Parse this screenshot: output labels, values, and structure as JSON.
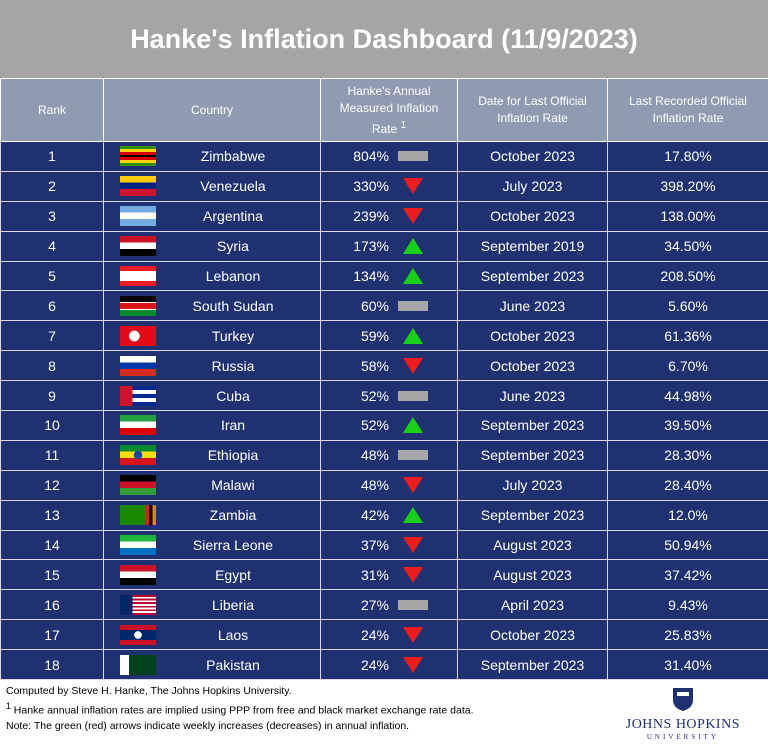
{
  "title": "Hanke's Inflation Dashboard (11/9/2023)",
  "table": {
    "header": [
      "Rank",
      "Country",
      "Hanke's Annual Measured Inflation Rate",
      "Date for Last Official Inflation Rate",
      "Last Recorded Official Inflation Rate"
    ],
    "header_mark": "1",
    "rows": [
      [
        "1",
        "Zimbabwe",
        "804%",
        "October 2023",
        "17.80%"
      ],
      [
        "2",
        "Venezuela",
        "330%",
        "July 2023",
        "398.20%"
      ],
      [
        "3",
        "Argentina",
        "239%",
        "October 2023",
        "138.00%"
      ],
      [
        "4",
        "Syria",
        "173%",
        "September 2019",
        "34.50%"
      ],
      [
        "5",
        "Lebanon",
        "134%",
        "September 2023",
        "208.50%"
      ],
      [
        "6",
        "South Sudan",
        "60%",
        "June 2023",
        "5.60%"
      ],
      [
        "7",
        "Turkey",
        "59%",
        "October 2023",
        "61.36%"
      ],
      [
        "8",
        "Russia",
        "58%",
        "October 2023",
        "6.70%"
      ],
      [
        "9",
        "Cuba",
        "52%",
        "June 2023",
        "44.98%"
      ],
      [
        "10",
        "Iran",
        "52%",
        "September 2023",
        "39.50%"
      ],
      [
        "11",
        "Ethiopia",
        "48%",
        "September 2023",
        "28.30%"
      ],
      [
        "12",
        "Malawi",
        "48%",
        "July 2023",
        "28.40%"
      ],
      [
        "13",
        "Zambia",
        "42%",
        "September 2023",
        "12.0%"
      ],
      [
        "14",
        "Sierra Leone",
        "37%",
        "August 2023",
        "50.94%"
      ],
      [
        "15",
        "Egypt",
        "31%",
        "August 2023",
        "37.42%"
      ],
      [
        "16",
        "Liberia",
        "27%",
        "April 2023",
        "9.43%"
      ],
      [
        "17",
        "Laos",
        "24%",
        "October 2023",
        "25.83%"
      ],
      [
        "18",
        "Pakistan",
        "24%",
        "September 2023",
        "31.40%"
      ]
    ],
    "trend": [
      "flat",
      "down",
      "down",
      "up",
      "up",
      "flat",
      "up",
      "down",
      "flat",
      "up",
      "flat",
      "down",
      "up",
      "down",
      "down",
      "flat",
      "down",
      "down"
    ]
  },
  "footer": {
    "credit": "Computed by Steve H. Hanke, The Johns Hopkins University.",
    "footnote_mark": "1",
    "footnote": "Hanke annual inflation rates are implied using PPP from free and black market exchange rate data.",
    "note": "Note: The green (red) arrows indicate weekly increases (decreases) in annual inflation.",
    "logo": [
      "JOHNS HOPKINS",
      "UNIVERSITY"
    ]
  }
}
